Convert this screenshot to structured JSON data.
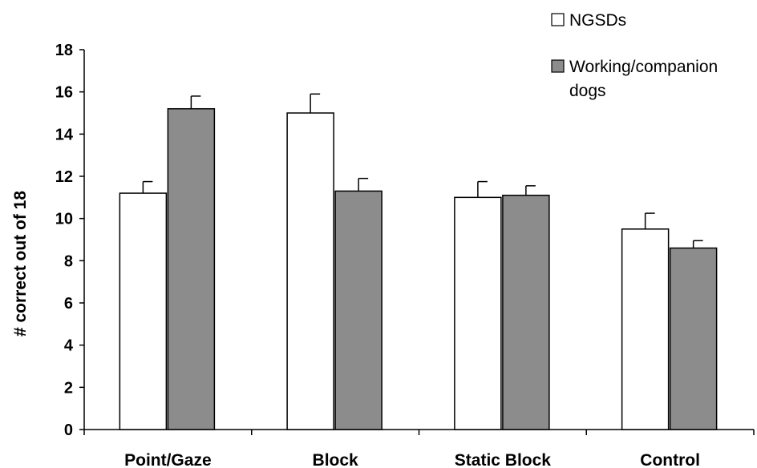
{
  "chart_data": {
    "type": "bar",
    "categories": [
      "Point/Gaze",
      "Block",
      "Static Block",
      "Control"
    ],
    "series": [
      {
        "name": "NGSDs",
        "values": [
          11.2,
          15.0,
          11.0,
          9.5
        ],
        "errors": [
          0.55,
          0.9,
          0.75,
          0.75
        ],
        "color": "#ffffff"
      },
      {
        "name": "Working/companion dogs",
        "values": [
          15.2,
          11.3,
          11.1,
          8.6
        ],
        "errors": [
          0.6,
          0.6,
          0.45,
          0.35
        ],
        "color": "#8c8c8c"
      }
    ],
    "xlabel": "",
    "ylabel": "# correct out of 18",
    "ylim": [
      0,
      18
    ],
    "yticks": [
      0,
      2,
      4,
      6,
      8,
      10,
      12,
      14,
      16,
      18
    ],
    "legend_position": "top-right",
    "grid": false
  }
}
